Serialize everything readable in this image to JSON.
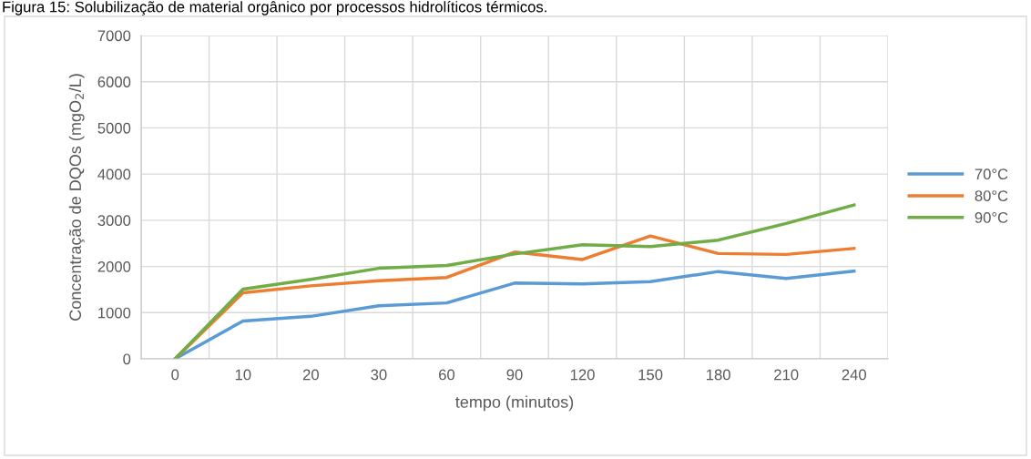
{
  "chart_data": {
    "type": "line",
    "title": "Figura 15: Solubilização de material orgânico por processos hidrolíticos térmicos.",
    "xlabel": "tempo (minutos)",
    "ylabel": "Concentração de DQOs (mgO$_{2}$/L)",
    "categories": [
      "0",
      "10",
      "20",
      "30",
      "60",
      "90",
      "120",
      "150",
      "180",
      "210",
      "240"
    ],
    "series": [
      {
        "name": "70°C",
        "color": "#5b9bd5",
        "values": [
          0,
          820,
          920,
          1150,
          1210,
          1640,
          1620,
          1670,
          1890,
          1740,
          1900
        ]
      },
      {
        "name": "80°C",
        "color": "#ed7d31",
        "values": [
          0,
          1430,
          1580,
          1690,
          1760,
          2310,
          2150,
          2660,
          2280,
          2260,
          2390
        ]
      },
      {
        "name": "90°C",
        "color": "#70ad47",
        "values": [
          0,
          1510,
          1720,
          1960,
          2020,
          2270,
          2470,
          2430,
          2570,
          2930,
          3330
        ]
      }
    ],
    "ylim": [
      0,
      7000
    ],
    "yticks": [
      0,
      1000,
      2000,
      3000,
      4000,
      5000,
      6000,
      7000
    ],
    "grid": true,
    "legend": "right",
    "marker": "none",
    "line_style": "solid"
  }
}
